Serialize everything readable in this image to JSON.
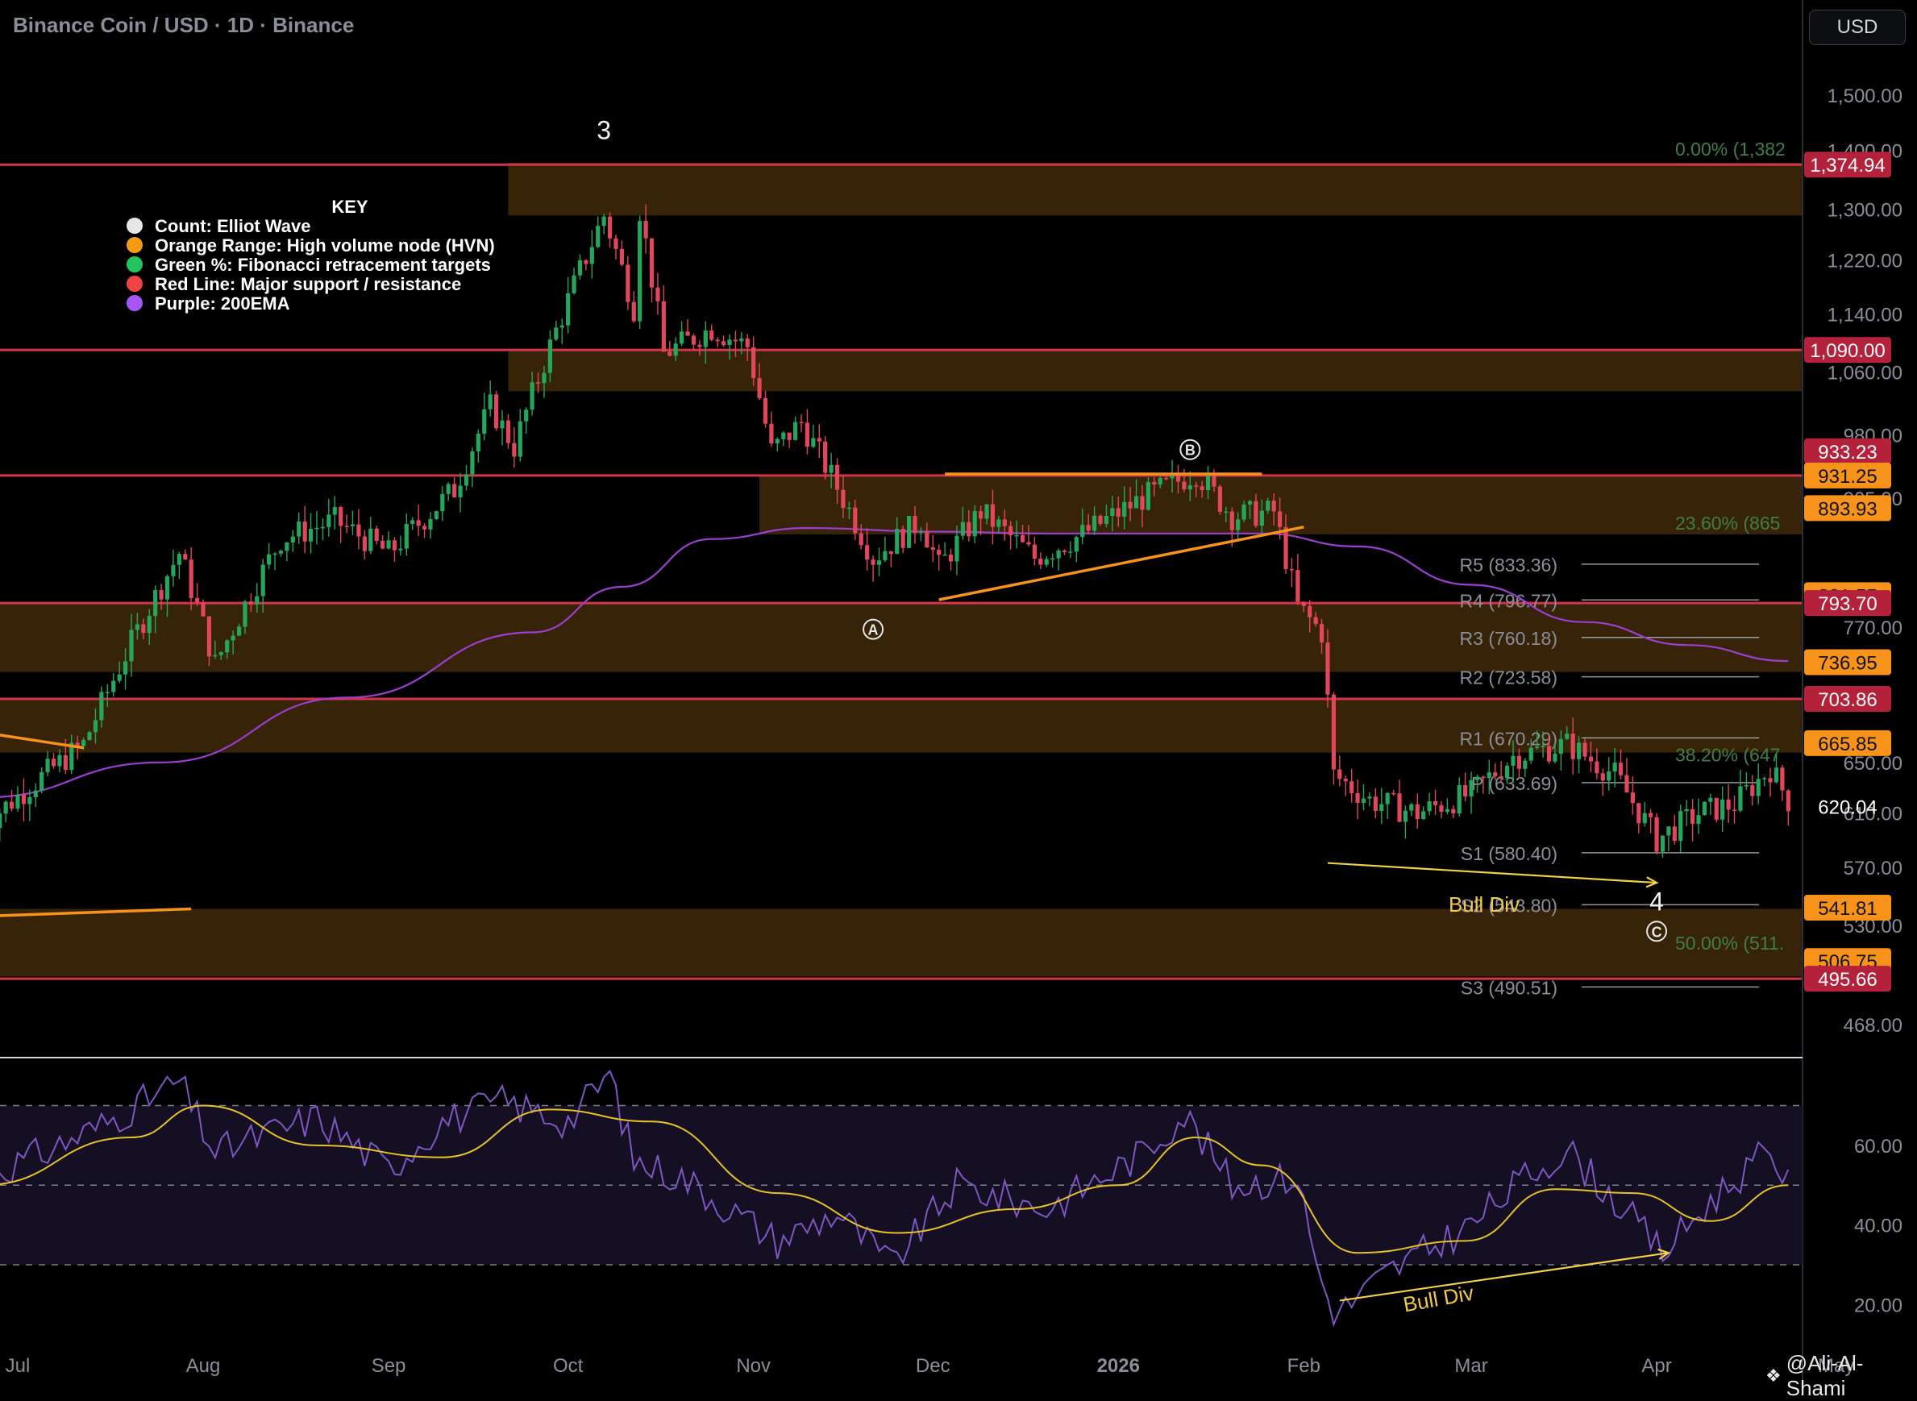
{
  "header": {
    "title": "Binance Coin / USD · 1D · Binance"
  },
  "currency_button": "USD",
  "watermark": {
    "text": "@Ali-Al-Shami",
    "icon": "tradingview-diamond-icon"
  },
  "legend": {
    "title": "KEY",
    "items": [
      {
        "label": "Count: Elliot Wave",
        "color": "#e6e6e6"
      },
      {
        "label": "Orange Range: High volume node (HVN)",
        "color": "#f39c12"
      },
      {
        "label": "Green %: Fibonacci retracement targets",
        "color": "#22c55e"
      },
      {
        "label": "Red Line: Major support / resistance",
        "color": "#ef4444"
      },
      {
        "label": "Purple: 200EMA",
        "color": "#a855f7"
      }
    ]
  },
  "colors": {
    "background": "#000000",
    "up_candle": "#26a65b",
    "down_candle": "#e0475b",
    "hvn_fill": "#3a2508",
    "support_line": "#d2344a",
    "ema": "#9c3fd1",
    "trendline": "#f7931a",
    "fib_text": "#3f7f45",
    "pivot_text": "#8c8f99",
    "rsi_line": "#7e57c2",
    "rsi_ma": "#e6c229",
    "rsi_band": "#140f22",
    "price_tag_orange": "#f7931a",
    "price_tag_red": "#b3213b"
  },
  "chart_data": {
    "type": "candlestick",
    "title": "Binance Coin / USD · 1D · Binance",
    "y_axis": {
      "scale": "log",
      "range": [
        460,
        1540
      ],
      "tick_labels": [
        "1,500.00",
        "1,400.00",
        "1,300.00",
        "1,220.00",
        "1,140.00",
        "1,060.00",
        "980.00",
        "905.00",
        "770.00",
        "650.00",
        "610.00",
        "570.00",
        "530.00",
        "468.00"
      ]
    },
    "x_axis": {
      "tick_labels": [
        "Jul",
        "Aug",
        "Sep",
        "Oct",
        "Nov",
        "Dec",
        "2026",
        "Feb",
        "Mar",
        "Apr",
        "May"
      ]
    },
    "price_anchors": [
      {
        "date": "2025-06-25",
        "price": 600
      },
      {
        "date": "2025-07-12",
        "price": 665
      },
      {
        "date": "2025-07-28",
        "price": 845
      },
      {
        "date": "2025-08-03",
        "price": 735
      },
      {
        "date": "2025-08-14",
        "price": 860
      },
      {
        "date": "2025-08-23",
        "price": 880
      },
      {
        "date": "2025-09-01",
        "price": 845
      },
      {
        "date": "2025-09-12",
        "price": 915
      },
      {
        "date": "2025-09-18",
        "price": 1015
      },
      {
        "date": "2025-09-22",
        "price": 965
      },
      {
        "date": "2025-10-07",
        "price": 1290
      },
      {
        "date": "2025-10-12",
        "price": 1150
      },
      {
        "date": "2025-10-13",
        "price": 1300
      },
      {
        "date": "2025-10-17",
        "price": 1085
      },
      {
        "date": "2025-10-25",
        "price": 1120
      },
      {
        "date": "2025-10-31",
        "price": 1095
      },
      {
        "date": "2025-11-04",
        "price": 960
      },
      {
        "date": "2025-11-09",
        "price": 995
      },
      {
        "date": "2025-11-21",
        "price": 840
      },
      {
        "date": "2025-11-29",
        "price": 880
      },
      {
        "date": "2025-12-02",
        "price": 830
      },
      {
        "date": "2025-12-09",
        "price": 890
      },
      {
        "date": "2025-12-18",
        "price": 840
      },
      {
        "date": "2025-12-26",
        "price": 865
      },
      {
        "date": "2026-01-05",
        "price": 905
      },
      {
        "date": "2026-01-14",
        "price": 935
      },
      {
        "date": "2026-01-20",
        "price": 885
      },
      {
        "date": "2026-01-27",
        "price": 890
      },
      {
        "date": "2026-01-31",
        "price": 790
      },
      {
        "date": "2026-02-04",
        "price": 765
      },
      {
        "date": "2026-02-06",
        "price": 640
      },
      {
        "date": "2026-02-12",
        "price": 620
      },
      {
        "date": "2026-02-20",
        "price": 610
      },
      {
        "date": "2026-03-01",
        "price": 625
      },
      {
        "date": "2026-03-08",
        "price": 655
      },
      {
        "date": "2026-03-17",
        "price": 665
      },
      {
        "date": "2026-03-25",
        "price": 640
      },
      {
        "date": "2026-04-01",
        "price": 590
      },
      {
        "date": "2026-04-08",
        "price": 610
      },
      {
        "date": "2026-04-14",
        "price": 617
      },
      {
        "date": "2026-04-20",
        "price": 645
      },
      {
        "date": "2026-04-23",
        "price": 620
      }
    ],
    "current_price": "620.04",
    "hvn_zones": [
      {
        "from": 1290,
        "to": 1378,
        "start": "2025-09-21"
      },
      {
        "from": 1035,
        "to": 1090,
        "start": "2025-09-21"
      },
      {
        "from": 865,
        "to": 931,
        "start": "2025-11-02"
      },
      {
        "from": 728,
        "to": 794,
        "start": "2025-06-25"
      },
      {
        "from": 658,
        "to": 704,
        "start": "2025-06-25"
      },
      {
        "from": 497,
        "to": 541,
        "start": "2025-06-25"
      }
    ],
    "support_lines": [
      1374.94,
      1090.0,
      931.25,
      793.7,
      703.86,
      495.66
    ],
    "price_tags": [
      {
        "value": "1,374.94",
        "price": 1374.94,
        "kind": "red"
      },
      {
        "value": "1,090.00",
        "price": 1090.0,
        "kind": "red"
      },
      {
        "value": "933.23",
        "price": 960,
        "kind": "red"
      },
      {
        "value": "931.25",
        "price": 931.25,
        "kind": "orange"
      },
      {
        "value": "893.93",
        "price": 893.93,
        "kind": "orange"
      },
      {
        "value": "801.55",
        "price": 801.55,
        "kind": "orange"
      },
      {
        "value": "793.70",
        "price": 793.7,
        "kind": "red"
      },
      {
        "value": "736.95",
        "price": 736.95,
        "kind": "orange"
      },
      {
        "value": "703.86",
        "price": 703.86,
        "kind": "red"
      },
      {
        "value": "665.85",
        "price": 665.85,
        "kind": "orange"
      },
      {
        "value": "541.81",
        "price": 541.81,
        "kind": "orange"
      },
      {
        "value": "506.75",
        "price": 506.75,
        "kind": "orange"
      },
      {
        "value": "495.66",
        "price": 495.66,
        "kind": "red"
      }
    ],
    "fib_levels": [
      {
        "label": "0.00% (1,382",
        "price": 1382
      },
      {
        "label": "23.60% (865",
        "price": 865
      },
      {
        "label": "38.20% (647",
        "price": 647
      },
      {
        "label": "50.00% (511.",
        "price": 511
      }
    ],
    "pivots": [
      {
        "label": "R5 (833.36)",
        "price": 833.36
      },
      {
        "label": "R4 (796.77)",
        "price": 796.77
      },
      {
        "label": "R3 (760.18)",
        "price": 760.18
      },
      {
        "label": "R2 (723.58)",
        "price": 723.58
      },
      {
        "label": "R1 (670.29)",
        "price": 670.29
      },
      {
        "label": "P (633.69)",
        "price": 633.69
      },
      {
        "label": "S1 (580.40)",
        "price": 580.4
      },
      {
        "label": "S2 (543.80)",
        "price": 543.8
      },
      {
        "label": "S3 (490.51)",
        "price": 490.51
      }
    ],
    "wave_labels": [
      {
        "text": "3",
        "date": "2025-10-07",
        "price": 1420,
        "circled": false
      },
      {
        "text": "A",
        "date": "2025-11-21",
        "price": 768,
        "circled": true
      },
      {
        "text": "B",
        "date": "2026-01-13",
        "price": 962,
        "circled": true
      },
      {
        "text": "4",
        "date": "2026-04-01",
        "price": 540,
        "circled": false
      },
      {
        "text": "C",
        "date": "2026-04-01",
        "price": 526,
        "circled": true
      }
    ],
    "trendlines": [
      {
        "from": {
          "date": "2025-06-25",
          "price": 675
        },
        "to": {
          "date": "2025-07-12",
          "price": 662
        }
      },
      {
        "from": {
          "date": "2025-06-25",
          "price": 536
        },
        "to": {
          "date": "2025-07-30",
          "price": 541
        }
      },
      {
        "from": {
          "date": "2025-12-03",
          "price": 933
        },
        "to": {
          "date": "2026-01-25",
          "price": 933
        }
      },
      {
        "from": {
          "date": "2025-12-02",
          "price": 797
        },
        "to": {
          "date": "2026-02-01",
          "price": 873
        }
      }
    ],
    "ema200": [
      {
        "date": "2025-06-25",
        "price": 622
      },
      {
        "date": "2025-07-25",
        "price": 650
      },
      {
        "date": "2025-08-25",
        "price": 705
      },
      {
        "date": "2025-09-25",
        "price": 765
      },
      {
        "date": "2025-10-10",
        "price": 810
      },
      {
        "date": "2025-10-25",
        "price": 860
      },
      {
        "date": "2025-11-10",
        "price": 872
      },
      {
        "date": "2025-12-01",
        "price": 868
      },
      {
        "date": "2025-12-20",
        "price": 866
      },
      {
        "date": "2026-01-10",
        "price": 866
      },
      {
        "date": "2026-01-25",
        "price": 866
      },
      {
        "date": "2026-02-10",
        "price": 852
      },
      {
        "date": "2026-03-01",
        "price": 812
      },
      {
        "date": "2026-03-20",
        "price": 775
      },
      {
        "date": "2026-04-06",
        "price": 753
      },
      {
        "date": "2026-04-23",
        "price": 738
      }
    ],
    "bull_div_price": {
      "label": "Bull Div",
      "from": {
        "date": "2026-02-05",
        "price": 573
      },
      "to": {
        "date": "2026-04-01",
        "price": 559
      }
    },
    "rsi": {
      "y_range": [
        14,
        78
      ],
      "tick_labels": [
        "60.00",
        "40.00",
        "20.00"
      ],
      "band": [
        30,
        70
      ],
      "midline": 50,
      "rsi_anchors": [
        {
          "date": "2025-06-25",
          "value": 52
        },
        {
          "date": "2025-07-05",
          "value": 58
        },
        {
          "date": "2025-07-15",
          "value": 65
        },
        {
          "date": "2025-07-28",
          "value": 76
        },
        {
          "date": "2025-08-03",
          "value": 58
        },
        {
          "date": "2025-08-10",
          "value": 62
        },
        {
          "date": "2025-08-20",
          "value": 67
        },
        {
          "date": "2025-09-01",
          "value": 54
        },
        {
          "date": "2025-09-10",
          "value": 66
        },
        {
          "date": "2025-09-20",
          "value": 71
        },
        {
          "date": "2025-10-01",
          "value": 66
        },
        {
          "date": "2025-10-08",
          "value": 78
        },
        {
          "date": "2025-10-12",
          "value": 56
        },
        {
          "date": "2025-10-20",
          "value": 52
        },
        {
          "date": "2025-11-05",
          "value": 36
        },
        {
          "date": "2025-11-15",
          "value": 43
        },
        {
          "date": "2025-11-24",
          "value": 30
        },
        {
          "date": "2025-12-05",
          "value": 50
        },
        {
          "date": "2025-12-20",
          "value": 44
        },
        {
          "date": "2026-01-05",
          "value": 58
        },
        {
          "date": "2026-01-12",
          "value": 68
        },
        {
          "date": "2026-01-20",
          "value": 50
        },
        {
          "date": "2026-01-31",
          "value": 52
        },
        {
          "date": "2026-02-03",
          "value": 31
        },
        {
          "date": "2026-02-06",
          "value": 17
        },
        {
          "date": "2026-02-15",
          "value": 28
        },
        {
          "date": "2026-03-01",
          "value": 40
        },
        {
          "date": "2026-03-10",
          "value": 52
        },
        {
          "date": "2026-03-17",
          "value": 59
        },
        {
          "date": "2026-03-27",
          "value": 43
        },
        {
          "date": "2026-04-02",
          "value": 33
        },
        {
          "date": "2026-04-10",
          "value": 46
        },
        {
          "date": "2026-04-20",
          "value": 59
        },
        {
          "date": "2026-04-23",
          "value": 50
        }
      ],
      "ma_anchors": [
        {
          "date": "2025-06-25",
          "value": 50
        },
        {
          "date": "2025-07-20",
          "value": 62
        },
        {
          "date": "2025-08-01",
          "value": 70
        },
        {
          "date": "2025-08-20",
          "value": 60
        },
        {
          "date": "2025-09-10",
          "value": 57
        },
        {
          "date": "2025-09-28",
          "value": 69
        },
        {
          "date": "2025-10-15",
          "value": 66
        },
        {
          "date": "2025-11-05",
          "value": 48
        },
        {
          "date": "2025-11-25",
          "value": 38
        },
        {
          "date": "2025-12-15",
          "value": 44
        },
        {
          "date": "2026-01-01",
          "value": 50
        },
        {
          "date": "2026-01-14",
          "value": 62
        },
        {
          "date": "2026-01-25",
          "value": 55
        },
        {
          "date": "2026-02-10",
          "value": 33
        },
        {
          "date": "2026-02-28",
          "value": 36
        },
        {
          "date": "2026-03-15",
          "value": 49
        },
        {
          "date": "2026-03-28",
          "value": 48
        },
        {
          "date": "2026-04-10",
          "value": 41
        },
        {
          "date": "2026-04-23",
          "value": 50
        }
      ],
      "bull_div": {
        "label": "Bull Div",
        "from": {
          "date": "2026-02-07",
          "value": 21
        },
        "to": {
          "date": "2026-04-03",
          "value": 33
        }
      }
    }
  }
}
